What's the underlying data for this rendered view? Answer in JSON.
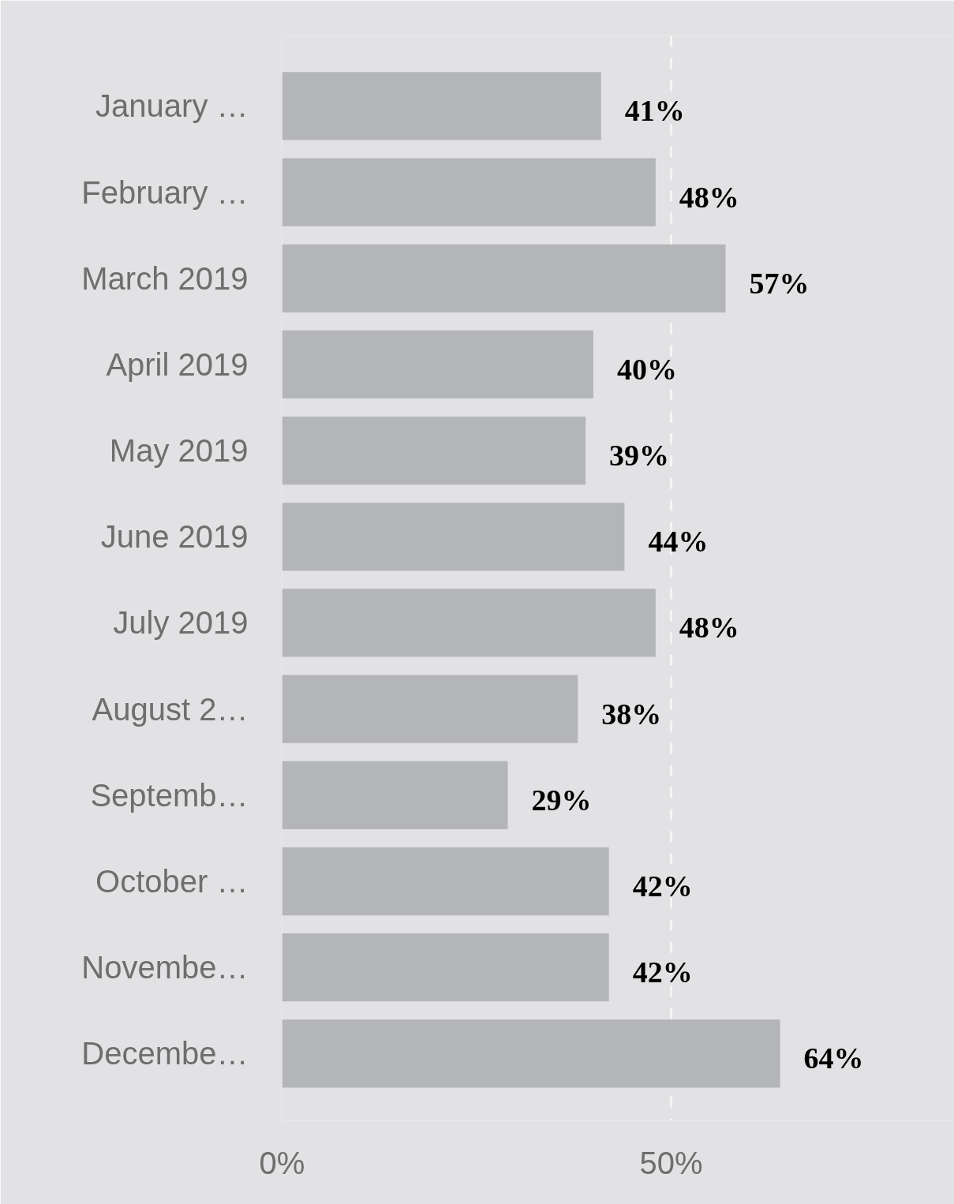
{
  "chart_data": {
    "type": "bar",
    "orientation": "horizontal",
    "categories": [
      "January …",
      "February …",
      "March 2019",
      "April 2019",
      "May 2019",
      "June 2019",
      "July 2019",
      "August 2…",
      "Septemb…",
      "October …",
      "Novembe…",
      "Decembe…"
    ],
    "values": [
      41,
      48,
      57,
      40,
      39,
      44,
      48,
      38,
      29,
      42,
      42,
      64
    ],
    "value_labels": [
      "41%",
      "48%",
      "57%",
      "40%",
      "39%",
      "44%",
      "48%",
      "38%",
      "29%",
      "42%",
      "42%",
      "64%"
    ],
    "color": "#b4b5b7",
    "xlim": [
      0,
      86.4
    ],
    "xticks": [
      {
        "value": 0,
        "label": "0%"
      },
      {
        "value": 50,
        "label": "50%"
      }
    ],
    "grid": "x"
  }
}
